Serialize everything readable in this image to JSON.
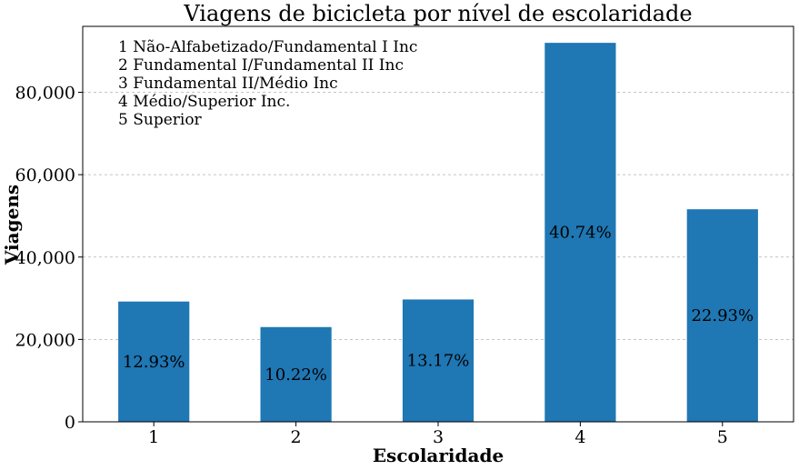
{
  "chart_data": {
    "type": "bar",
    "title": "Viagens de bicicleta por nível de escolaridade",
    "xlabel": "Escolaridade",
    "ylabel": "Viagens",
    "categories": [
      "1",
      "2",
      "3",
      "4",
      "5"
    ],
    "values": [
      29200,
      23000,
      29700,
      92000,
      51600
    ],
    "data_labels": [
      "12.93%",
      "10.22%",
      "13.17%",
      "40.74%",
      "22.93%"
    ],
    "ylim": [
      0,
      96000
    ],
    "yticks": [
      0,
      20000,
      40000,
      60000,
      80000
    ],
    "ytick_labels": [
      "0",
      "20,000",
      "40,000",
      "60,000",
      "80,000"
    ],
    "grid": "horizontal-dashed",
    "bar_color": "#1f77b4",
    "annotations": [
      "1 Não-Alfabetizado/Fundamental I Inc",
      "2 Fundamental I/Fundamental II Inc",
      "3 Fundamental II/Médio Inc",
      "4 Médio/Superior Inc.",
      "5 Superior"
    ]
  }
}
